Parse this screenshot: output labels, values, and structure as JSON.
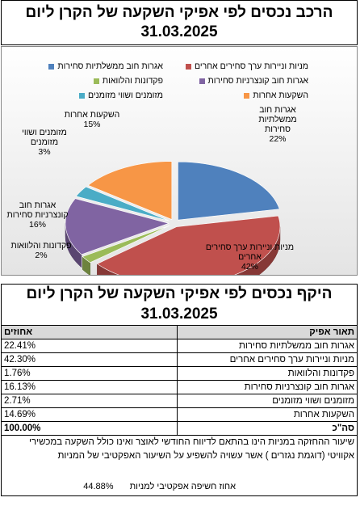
{
  "chart_data": {
    "type": "pie",
    "title": "הרכב נכסים לפי אפיקי השקעה של הקרן ליום",
    "subtitle": "31.03.2025",
    "categories": [
      "אגרות חוב ממשלתיות סחירות",
      "מניות וניירות ערך סחירים אחרים",
      "פקדונות והלוואות",
      "אגרות חוב קונצרניות סחירות",
      "מזומנים ושווי מזומנים",
      "השקעות אחרות"
    ],
    "values": [
      22,
      42,
      2,
      16,
      3,
      15
    ],
    "value_labels": [
      "22%",
      "42%",
      "2%",
      "16%",
      "3%",
      "15%"
    ],
    "colors": [
      "#4f81bd",
      "#c0504d",
      "#9bbb59",
      "#8064a2",
      "#4bacc6",
      "#f79646"
    ]
  },
  "table": {
    "title": "היקף נכסים לפי אפיקי השקעה של הקרן ליום",
    "date": "31.03.2025",
    "header": [
      "תאור אפיק",
      "אחוזים"
    ],
    "rows": [
      [
        "אגרות חוב ממשלתיות סחירות",
        "22.41%"
      ],
      [
        "מניות וניירות ערך סחירים אחרים",
        "42.30%"
      ],
      [
        "פקדונות והלוואות",
        "1.76%"
      ],
      [
        "אגרות חוב קונצרניות סחירות",
        "16.13%"
      ],
      [
        "מזומנים ושווי מזומנים",
        "2.71%"
      ],
      [
        "השקעות אחרות",
        "14.69%"
      ]
    ],
    "total": [
      "סה\"כ",
      "100.00%"
    ],
    "note": "שיעור ההחזקה במניות הינו בהתאם לדיווח החודשי לאוצר ואינו כולל השקעה במכשירי אקוויטי (דוגמת נגזרים ) אשר עשויה להשפיע על השיעור האפקטיבי של המניות",
    "footer": [
      "אחוז חשיפה אפקטיבי למניות",
      "44.88%"
    ]
  }
}
